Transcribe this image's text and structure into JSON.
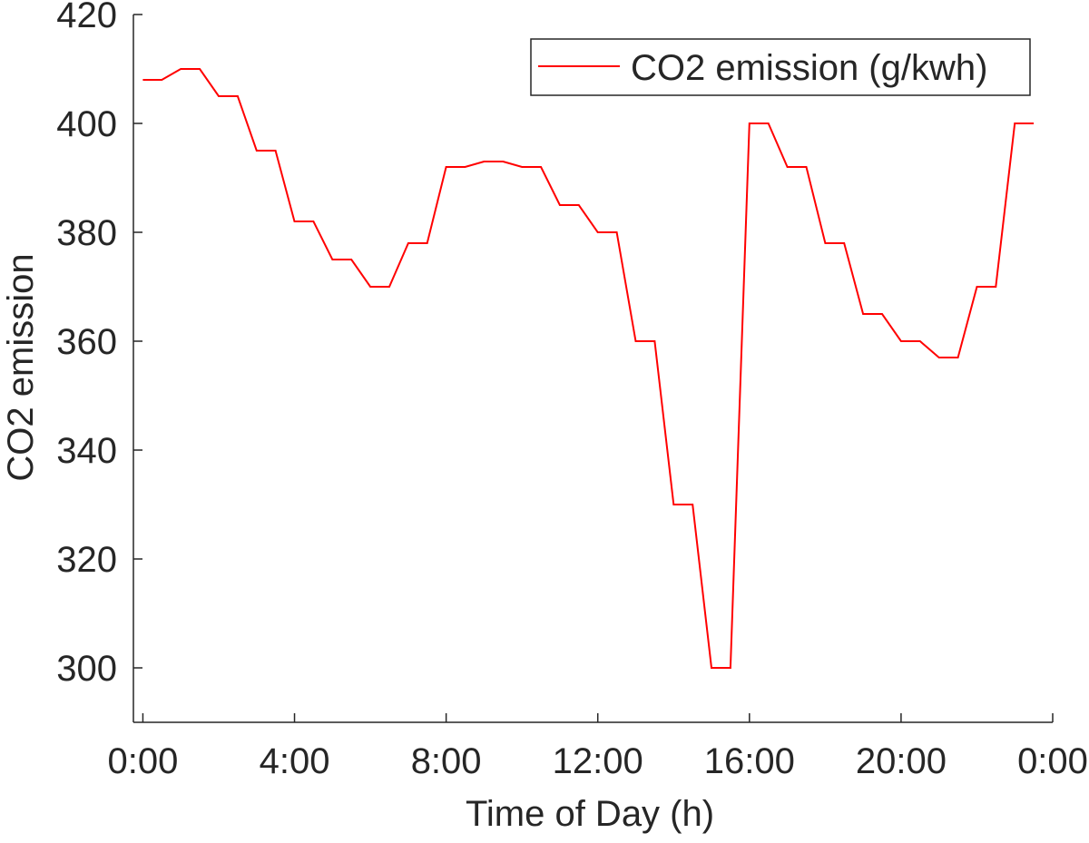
{
  "chart_data": {
    "type": "line",
    "title": "",
    "xlabel": "Time of Day (h)",
    "ylabel": "CO2 emission",
    "xlim": [
      -0.25,
      24
    ],
    "ylim": [
      290,
      420
    ],
    "x_tick_values": [
      0,
      4,
      8,
      12,
      16,
      20,
      24
    ],
    "x_tick_labels": [
      "0:00",
      "4:00",
      "8:00",
      "12:00",
      "16:00",
      "20:00",
      "0:00"
    ],
    "y_tick_values": [
      300,
      320,
      340,
      360,
      380,
      400,
      420
    ],
    "y_tick_labels": [
      "300",
      "320",
      "340",
      "360",
      "380",
      "400",
      "420"
    ],
    "grid": false,
    "legend_position": "top-right",
    "series": [
      {
        "name": "CO2 emission (g/kwh)",
        "color": "#ff0000",
        "x": [
          0,
          0.5,
          1,
          1.5,
          2,
          2.5,
          3,
          3.5,
          4,
          4.5,
          5,
          5.5,
          6,
          6.5,
          7,
          7.5,
          8,
          8.5,
          9,
          9.5,
          10,
          10.5,
          11,
          11.5,
          12,
          12.5,
          13,
          13.5,
          14,
          14.5,
          15,
          15.5,
          16,
          16.5,
          17,
          17.5,
          18,
          18.5,
          19,
          19.5,
          20,
          20.5,
          21,
          21.5,
          22,
          22.5,
          23,
          23.5
        ],
        "values": [
          408,
          408,
          410,
          410,
          405,
          405,
          395,
          395,
          382,
          382,
          375,
          375,
          370,
          370,
          378,
          378,
          392,
          392,
          393,
          393,
          392,
          392,
          385,
          385,
          380,
          380,
          360,
          360,
          330,
          330,
          300,
          300,
          400,
          400,
          392,
          392,
          378,
          378,
          365,
          365,
          360,
          360,
          357,
          357,
          370,
          370,
          400,
          400
        ]
      }
    ]
  }
}
